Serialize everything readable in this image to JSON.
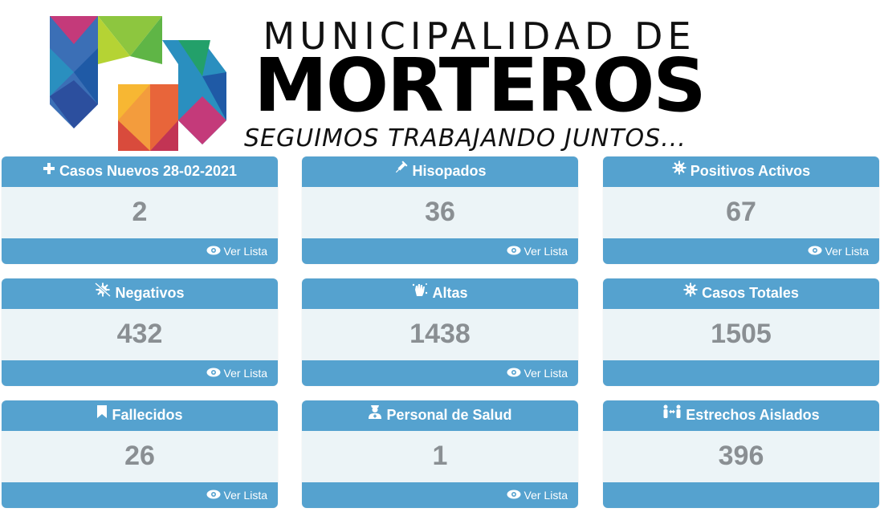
{
  "header": {
    "line1": "MUNICIPALIDAD  DE",
    "line2": "MORTEROS",
    "line3": "SEGUIMOS TRABAJANDO JUNTOS..."
  },
  "colors": {
    "card_header": "#55a2cf",
    "card_body": "#ecf4f7",
    "value_text": "#8a8f93"
  },
  "cards": [
    {
      "title": "Casos Nuevos 28-02-2021",
      "value": "2",
      "icon": "plus-icon",
      "link": "Ver Lista"
    },
    {
      "title": "Hisopados",
      "value": "36",
      "icon": "syringe-icon",
      "link": "Ver Lista"
    },
    {
      "title": "Positivos Activos",
      "value": "67",
      "icon": "virus-icon",
      "link": "Ver Lista"
    },
    {
      "title": "Negativos",
      "value": "432",
      "icon": "virus-slash-icon",
      "link": "Ver Lista"
    },
    {
      "title": "Altas",
      "value": "1438",
      "icon": "hand-sparkles-icon",
      "link": "Ver Lista"
    },
    {
      "title": "Casos Totales",
      "value": "1505",
      "icon": "virus-icon",
      "link": ""
    },
    {
      "title": "Fallecidos",
      "value": "26",
      "icon": "bookmark-icon",
      "link": "Ver Lista"
    },
    {
      "title": "Personal de Salud",
      "value": "1",
      "icon": "user-nurse-icon",
      "link": "Ver Lista"
    },
    {
      "title": "Estrechos Aislados",
      "value": "396",
      "icon": "people-arrows-icon",
      "link": ""
    }
  ]
}
